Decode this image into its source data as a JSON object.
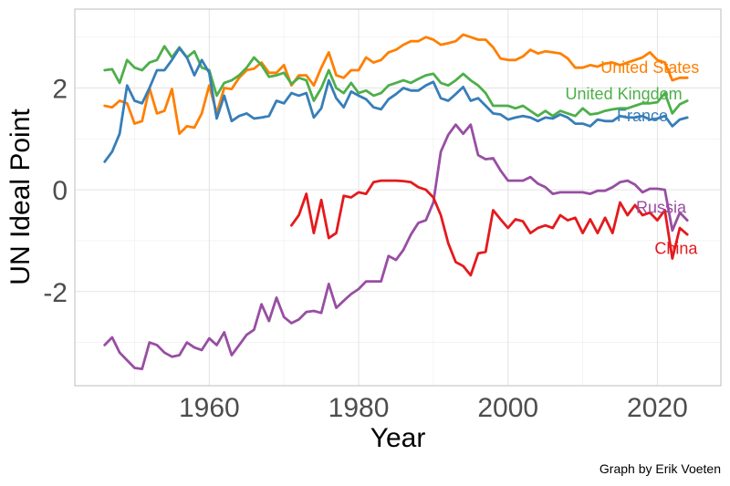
{
  "chart_data": {
    "type": "line",
    "title": "",
    "xlabel": "Year",
    "ylabel": "UN Ideal Point",
    "caption": "Graph by Erik Voeten",
    "xlim": [
      1942,
      2028.5
    ],
    "ylim": [
      -3.85,
      3.55
    ],
    "x_ticks": [
      1960,
      1980,
      2000,
      2020
    ],
    "y_ticks": [
      -2,
      0,
      2
    ],
    "x_minor_ticks": [
      1950,
      1970,
      1990,
      2010
    ],
    "y_minor_ticks": [
      -3,
      -1,
      1,
      3
    ],
    "grid": true,
    "legend": "direct labels at line ends",
    "series": [
      {
        "name": "United States",
        "color": "#FF7F00",
        "label_pos": [
          2019,
          2.4
        ],
        "x": [
          1946,
          1947,
          1948,
          1949,
          1950,
          1951,
          1952,
          1953,
          1954,
          1955,
          1956,
          1957,
          1958,
          1959,
          1960,
          1961,
          1962,
          1963,
          1964,
          1965,
          1966,
          1967,
          1968,
          1969,
          1970,
          1971,
          1972,
          1973,
          1974,
          1975,
          1976,
          1977,
          1978,
          1979,
          1980,
          1981,
          1982,
          1983,
          1984,
          1985,
          1986,
          1987,
          1988,
          1989,
          1990,
          1991,
          1992,
          1993,
          1994,
          1995,
          1996,
          1997,
          1998,
          1999,
          2000,
          2001,
          2002,
          2003,
          2004,
          2005,
          2006,
          2007,
          2008,
          2009,
          2010,
          2011,
          2012,
          2013,
          2014,
          2015,
          2016,
          2017,
          2018,
          2019,
          2020,
          2021,
          2022,
          2023,
          2024
        ],
        "y": [
          1.65,
          1.62,
          1.75,
          1.7,
          1.3,
          1.35,
          2.0,
          1.5,
          1.55,
          1.98,
          1.1,
          1.25,
          1.22,
          1.5,
          2.05,
          1.5,
          2.0,
          1.98,
          2.2,
          2.35,
          2.38,
          2.5,
          2.3,
          2.3,
          2.45,
          2.05,
          2.25,
          2.25,
          2.05,
          2.4,
          2.7,
          2.25,
          2.2,
          2.35,
          2.35,
          2.6,
          2.5,
          2.55,
          2.7,
          2.75,
          2.85,
          2.92,
          2.92,
          3.0,
          2.95,
          2.85,
          2.88,
          2.92,
          3.05,
          3.0,
          2.95,
          2.95,
          2.8,
          2.58,
          2.55,
          2.55,
          2.62,
          2.75,
          2.68,
          2.72,
          2.7,
          2.68,
          2.58,
          2.4,
          2.4,
          2.45,
          2.42,
          2.48,
          2.5,
          2.45,
          2.5,
          2.55,
          2.6,
          2.7,
          2.55,
          2.5,
          2.15,
          2.2,
          2.2
        ]
      },
      {
        "name": "United Kingdom",
        "color": "#4DAF4A",
        "label_pos": [
          2015.5,
          1.88
        ],
        "x": [
          1946,
          1947,
          1948,
          1949,
          1950,
          1951,
          1952,
          1953,
          1954,
          1955,
          1956,
          1957,
          1958,
          1959,
          1960,
          1961,
          1962,
          1963,
          1964,
          1965,
          1966,
          1967,
          1968,
          1969,
          1970,
          1971,
          1972,
          1973,
          1974,
          1975,
          1976,
          1977,
          1978,
          1979,
          1980,
          1981,
          1982,
          1983,
          1984,
          1985,
          1986,
          1987,
          1988,
          1989,
          1990,
          1991,
          1992,
          1993,
          1994,
          1995,
          1996,
          1997,
          1998,
          1999,
          2000,
          2001,
          2002,
          2003,
          2004,
          2005,
          2006,
          2007,
          2008,
          2009,
          2010,
          2011,
          2012,
          2013,
          2014,
          2015,
          2016,
          2017,
          2018,
          2019,
          2020,
          2021,
          2022,
          2023,
          2024
        ],
        "y": [
          2.35,
          2.37,
          2.1,
          2.55,
          2.4,
          2.35,
          2.5,
          2.55,
          2.82,
          2.6,
          2.8,
          2.6,
          2.72,
          2.4,
          2.35,
          1.85,
          2.1,
          2.15,
          2.25,
          2.4,
          2.6,
          2.45,
          2.22,
          2.25,
          2.3,
          2.08,
          2.2,
          2.15,
          1.75,
          2.0,
          2.35,
          2.0,
          1.9,
          2.1,
          1.9,
          1.95,
          1.85,
          1.9,
          2.05,
          2.1,
          2.15,
          2.1,
          2.18,
          2.25,
          2.28,
          2.1,
          2.05,
          2.15,
          2.28,
          2.15,
          2.05,
          1.9,
          1.65,
          1.65,
          1.65,
          1.6,
          1.65,
          1.55,
          1.45,
          1.55,
          1.45,
          1.55,
          1.5,
          1.45,
          1.6,
          1.48,
          1.5,
          1.55,
          1.58,
          1.6,
          1.6,
          1.65,
          1.7,
          1.7,
          1.72,
          1.9,
          1.5,
          1.68,
          1.75
        ]
      },
      {
        "name": "France",
        "color": "#377EB8",
        "label_pos": [
          2018,
          1.45
        ],
        "x": [
          1946,
          1947,
          1948,
          1949,
          1950,
          1951,
          1952,
          1953,
          1954,
          1955,
          1956,
          1957,
          1958,
          1959,
          1960,
          1961,
          1962,
          1963,
          1964,
          1965,
          1966,
          1967,
          1968,
          1969,
          1970,
          1971,
          1972,
          1973,
          1974,
          1975,
          1976,
          1977,
          1978,
          1979,
          1980,
          1981,
          1982,
          1983,
          1984,
          1985,
          1986,
          1987,
          1988,
          1989,
          1990,
          1991,
          1992,
          1993,
          1994,
          1995,
          1996,
          1997,
          1998,
          1999,
          2000,
          2001,
          2002,
          2003,
          2004,
          2005,
          2006,
          2007,
          2008,
          2009,
          2010,
          2011,
          2012,
          2013,
          2014,
          2015,
          2016,
          2017,
          2018,
          2019,
          2020,
          2021,
          2022,
          2023,
          2024
        ],
        "y": [
          0.55,
          0.75,
          1.1,
          2.05,
          1.75,
          1.7,
          2.0,
          2.35,
          2.35,
          2.55,
          2.78,
          2.6,
          2.25,
          2.55,
          2.3,
          1.4,
          1.85,
          1.35,
          1.45,
          1.5,
          1.4,
          1.42,
          1.45,
          1.75,
          1.7,
          1.9,
          1.85,
          1.9,
          1.42,
          1.6,
          2.15,
          1.8,
          1.62,
          1.93,
          1.85,
          1.78,
          1.62,
          1.58,
          1.78,
          1.88,
          2.0,
          1.95,
          1.95,
          2.05,
          2.12,
          1.8,
          1.75,
          1.88,
          2.02,
          1.75,
          1.8,
          1.65,
          1.5,
          1.48,
          1.38,
          1.42,
          1.45,
          1.42,
          1.35,
          1.42,
          1.4,
          1.48,
          1.42,
          1.3,
          1.3,
          1.25,
          1.38,
          1.35,
          1.35,
          1.45,
          1.42,
          1.42,
          1.45,
          1.38,
          1.4,
          1.45,
          1.25,
          1.38,
          1.42
        ]
      },
      {
        "name": "Russia",
        "color": "#984EA3",
        "label_pos": [
          2020.5,
          -0.35
        ],
        "x": [
          1946,
          1947,
          1948,
          1949,
          1950,
          1951,
          1952,
          1953,
          1954,
          1955,
          1956,
          1957,
          1958,
          1959,
          1960,
          1961,
          1962,
          1963,
          1964,
          1965,
          1966,
          1967,
          1968,
          1969,
          1970,
          1971,
          1972,
          1973,
          1974,
          1975,
          1976,
          1977,
          1978,
          1979,
          1980,
          1981,
          1982,
          1983,
          1984,
          1985,
          1986,
          1987,
          1988,
          1989,
          1990,
          1991,
          1992,
          1993,
          1994,
          1995,
          1996,
          1997,
          1998,
          1999,
          2000,
          2001,
          2002,
          2003,
          2004,
          2005,
          2006,
          2007,
          2008,
          2009,
          2010,
          2011,
          2012,
          2013,
          2014,
          2015,
          2016,
          2017,
          2018,
          2019,
          2020,
          2021,
          2022,
          2023,
          2024
        ],
        "y": [
          -3.05,
          -2.9,
          -3.2,
          -3.35,
          -3.5,
          -3.52,
          -3.0,
          -3.05,
          -3.2,
          -3.28,
          -3.25,
          -3.0,
          -3.1,
          -3.15,
          -2.92,
          -3.05,
          -2.8,
          -3.25,
          -3.05,
          -2.85,
          -2.75,
          -2.25,
          -2.58,
          -2.12,
          -2.5,
          -2.62,
          -2.55,
          -2.4,
          -2.38,
          -2.42,
          -1.85,
          -2.32,
          -2.18,
          -2.05,
          -1.95,
          -1.8,
          -1.8,
          -1.8,
          -1.3,
          -1.38,
          -1.18,
          -0.88,
          -0.65,
          -0.6,
          -0.25,
          0.75,
          1.08,
          1.28,
          1.1,
          1.28,
          0.68,
          0.6,
          0.62,
          0.38,
          0.18,
          0.18,
          0.18,
          0.25,
          0.12,
          0.05,
          -0.08,
          -0.05,
          -0.05,
          -0.05,
          -0.05,
          -0.08,
          -0.02,
          -0.02,
          0.05,
          0.15,
          0.18,
          0.1,
          -0.05,
          0.02,
          0.02,
          0.0,
          -0.8,
          -0.45,
          -0.6
        ]
      },
      {
        "name": "China",
        "color": "#E41A1C",
        "label_pos": [
          2022.5,
          -1.15
        ],
        "x": [
          1971,
          1972,
          1973,
          1974,
          1975,
          1976,
          1977,
          1978,
          1979,
          1980,
          1981,
          1982,
          1983,
          1984,
          1985,
          1986,
          1987,
          1988,
          1989,
          1990,
          1991,
          1992,
          1993,
          1994,
          1995,
          1996,
          1997,
          1998,
          1999,
          2000,
          2001,
          2002,
          2003,
          2004,
          2005,
          2006,
          2007,
          2008,
          2009,
          2010,
          2011,
          2012,
          2013,
          2014,
          2015,
          2016,
          2017,
          2018,
          2019,
          2020,
          2021,
          2022,
          2023,
          2024
        ],
        "y": [
          -0.7,
          -0.5,
          -0.08,
          -0.85,
          -0.2,
          -0.95,
          -0.85,
          -0.12,
          -0.15,
          -0.05,
          -0.08,
          0.15,
          0.18,
          0.18,
          0.18,
          0.17,
          0.15,
          0.05,
          0.0,
          -0.15,
          -0.5,
          -1.05,
          -1.42,
          -1.5,
          -1.68,
          -1.25,
          -1.22,
          -0.4,
          -0.58,
          -0.75,
          -0.58,
          -0.62,
          -0.85,
          -0.75,
          -0.7,
          -0.75,
          -0.5,
          -0.6,
          -0.55,
          -0.85,
          -0.58,
          -0.85,
          -0.55,
          -0.85,
          -0.25,
          -0.5,
          -0.3,
          -0.5,
          -0.45,
          -0.6,
          -0.4,
          -1.35,
          -0.75,
          -0.88
        ]
      }
    ]
  }
}
